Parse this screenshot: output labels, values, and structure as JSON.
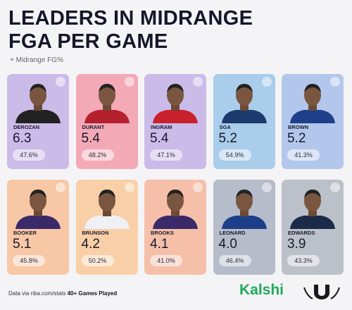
{
  "header": {
    "title_line1": "LEADERS IN MIDRANGE",
    "title_line2": "FGA PER GAME",
    "subtitle": "+ Midrange FG%"
  },
  "cards": [
    {
      "name": "DEROZAN",
      "value": "6.3",
      "fg_pct": "47.6%",
      "color": "#cbbbe9",
      "jersey": "#222"
    },
    {
      "name": "DURANT",
      "value": "5.4",
      "fg_pct": "48.2%",
      "color": "#f3a9b6",
      "jersey": "#b5202f"
    },
    {
      "name": "INGRAM",
      "value": "5.4",
      "fg_pct": "47.1%",
      "color": "#cbbbe9",
      "jersey": "#c8202c"
    },
    {
      "name": "SGA",
      "value": "5.2",
      "fg_pct": "54.9%",
      "color": "#a9cdeb",
      "jersey": "#1d3a6e"
    },
    {
      "name": "BROWN",
      "value": "5.2",
      "fg_pct": "41.3%",
      "color": "#b3c7ec",
      "jersey": "#1e3f8a"
    },
    {
      "name": "BOOKER",
      "value": "5.1",
      "fg_pct": "45.8%",
      "color": "#f8c7a6",
      "jersey": "#3b2a6a"
    },
    {
      "name": "BRUNSON",
      "value": "4.2",
      "fg_pct": "50.2%",
      "color": "#f9cfa8",
      "jersey": "#eef0f4"
    },
    {
      "name": "BROOKS",
      "value": "4.1",
      "fg_pct": "41.0%",
      "color": "#f6bfa9",
      "jersey": "#3b2a6a"
    },
    {
      "name": "LEONARD",
      "value": "4.0",
      "fg_pct": "46.4%",
      "color": "#b6bcc9",
      "jersey": "#1d3f8a"
    },
    {
      "name": "EDWARDS",
      "value": "3.9",
      "fg_pct": "43.3%",
      "color": "#bcc0c9",
      "jersey": "#1b2a48"
    }
  ],
  "footer": {
    "source": "Data via nba.com/stats",
    "note": "40+ Games Played",
    "brand": "Kalshi"
  }
}
